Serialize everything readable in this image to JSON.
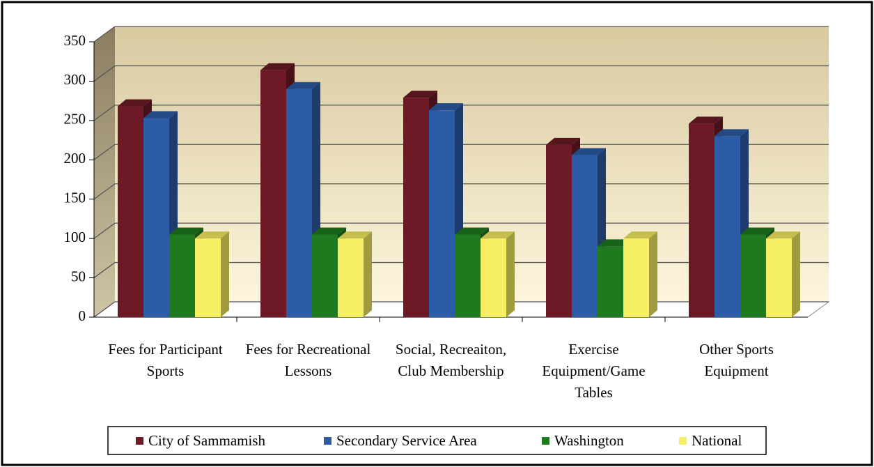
{
  "chart_data": {
    "type": "bar3d",
    "categories": [
      "Fees for Participant Sports",
      "Fees for Recreational Lessons",
      "Social, Recreaiton, Club Membership",
      "Exercise Equipment/Game Tables",
      "Other Sports Equipment"
    ],
    "series": [
      {
        "name": "City of Sammamish",
        "color": "#6d1a26",
        "values": [
          268,
          314,
          279,
          219,
          246
        ]
      },
      {
        "name": "Secondary Service Area",
        "color": "#2c5ca6",
        "values": [
          253,
          290,
          263,
          206,
          230
        ]
      },
      {
        "name": "Washington",
        "color": "#1f7a1f",
        "values": [
          105,
          105,
          105,
          90,
          105
        ]
      },
      {
        "name": "National",
        "color": "#f7ef63",
        "values": [
          100,
          100,
          100,
          100,
          100
        ]
      }
    ],
    "ylim": [
      0,
      350
    ],
    "yticks": [
      0,
      50,
      100,
      150,
      200,
      250,
      300,
      350
    ],
    "grid": true,
    "legend": "bottom"
  }
}
